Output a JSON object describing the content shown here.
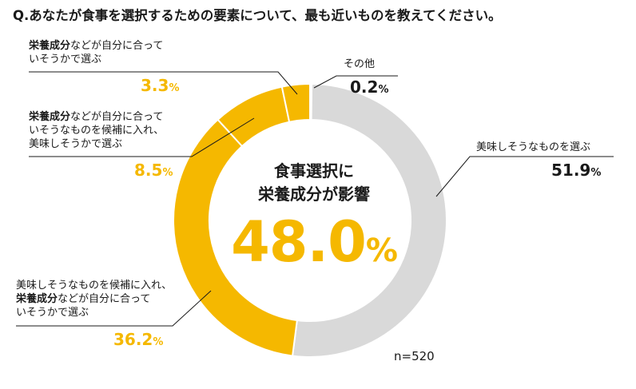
{
  "question": "Q.あなたが食事を選択するための要素について、最も近いものを教えてください。",
  "center": {
    "title_line1": "食事選択に",
    "title_line2": "栄養成分が影響",
    "value": "48.0",
    "unit": "%"
  },
  "n_label": "n=520",
  "labels": {
    "other": {
      "text": "その他",
      "value": "0.2",
      "unit": "%"
    },
    "tasty": {
      "text": "美味しそうなものを選ぶ",
      "value": "51.9",
      "unit": "%"
    },
    "nutrition": {
      "bold": "栄養成分",
      "rest": "などが自分に合って",
      "line2": "いそうかで選ぶ",
      "value": "3.3",
      "unit": "%"
    },
    "nutrition_then_tasty": {
      "bold": "栄養成分",
      "rest": "などが自分に合って",
      "line2": "いそうなものを候補に入れ、",
      "line3": "美味しそうかで選ぶ",
      "value": "8.5",
      "unit": "%"
    },
    "tasty_then_nutrition": {
      "line1": "美味しそうなものを候補に入れ、",
      "bold": "栄養成分",
      "rest": "などが自分に合って",
      "line3": "いそうかで選ぶ",
      "value": "36.2",
      "unit": "%"
    }
  },
  "chart_data": {
    "type": "pie",
    "donut": true,
    "n": 520,
    "unit": "%",
    "slices": [
      {
        "label": "その他",
        "value": 0.2,
        "color": "#d9d9d9"
      },
      {
        "label": "美味しそうなものを選ぶ",
        "value": 51.9,
        "color": "#d9d9d9"
      },
      {
        "label": "美味しそうなものを候補に入れ、栄養成分などが自分に合っていそうかで選ぶ",
        "value": 36.2,
        "color": "#f5b800"
      },
      {
        "label": "栄養成分などが自分に合っていそうなものを候補に入れ、美味しそうかで選ぶ",
        "value": 8.5,
        "color": "#f5b800"
      },
      {
        "label": "栄養成分などが自分に合っていそうかで選ぶ",
        "value": 3.3,
        "color": "#f5b800"
      }
    ]
  }
}
